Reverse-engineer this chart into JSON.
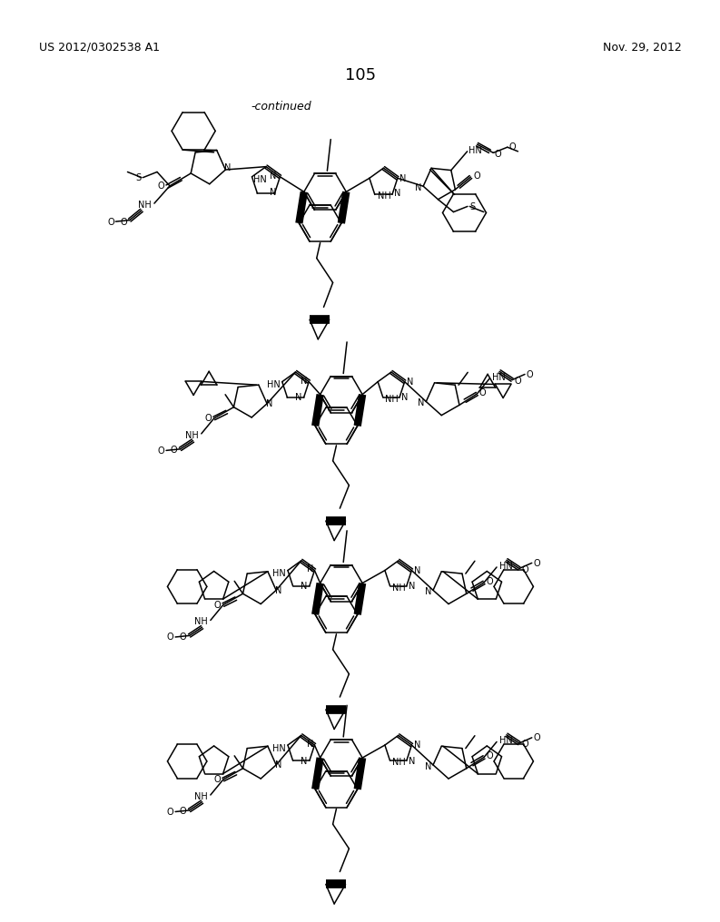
{
  "page_number": "105",
  "header_left": "US 2012/0302538 A1",
  "header_right": "Nov. 29, 2012",
  "continued_label": "-continued",
  "background_color": "#ffffff",
  "text_color": "#000000"
}
